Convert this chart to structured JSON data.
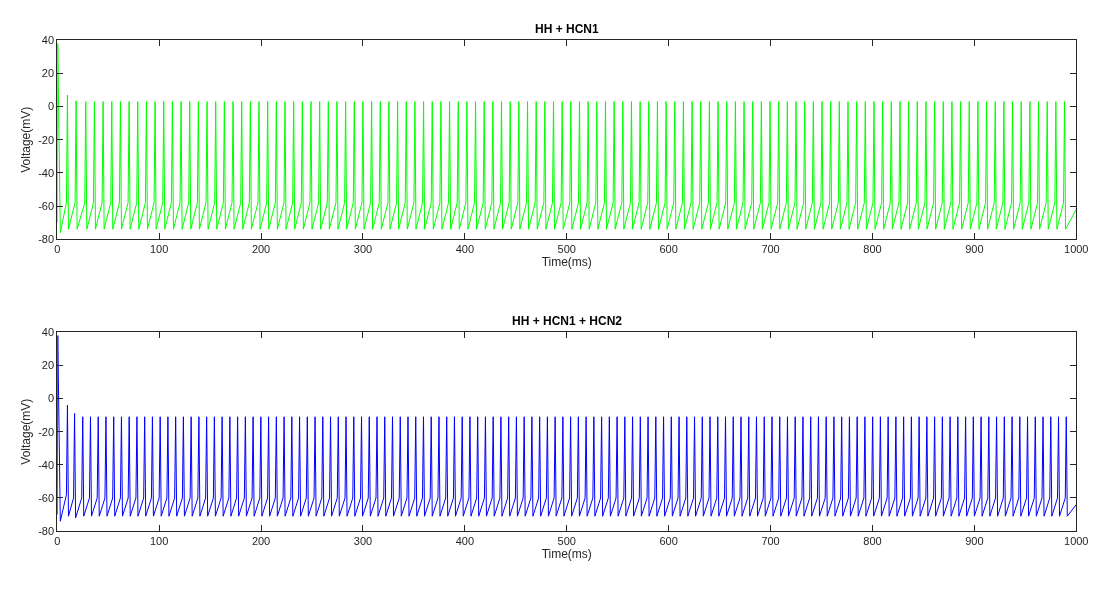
{
  "chart_data": [
    {
      "type": "line",
      "title": "HH + HCN1",
      "xlabel": "Time(ms)",
      "ylabel": "Voltage(mV)",
      "xlim": [
        0,
        1000
      ],
      "xticks": [
        0,
        100,
        200,
        300,
        400,
        500,
        600,
        700,
        800,
        900,
        1000
      ],
      "ylim": [
        -80,
        40
      ],
      "yticks": [
        -80,
        -60,
        -40,
        -20,
        0,
        20,
        40
      ],
      "series": [
        {
          "color": "#00ff00",
          "x": [
            0,
            0.5,
            3,
            9,
            10,
            11,
            17.5,
            18.5,
            19.5,
            27,
            28,
            29,
            35.5,
            36.5,
            37.5,
            44,
            45,
            46,
            52.5,
            53.5,
            54.5,
            61,
            62,
            63,
            69.5,
            70.5,
            71.5,
            78,
            79,
            80,
            86.5,
            87.5,
            88.5,
            95,
            96,
            97,
            103.5,
            104.5,
            105.5,
            112,
            113,
            114,
            120.5,
            121.5,
            122.5,
            129,
            130,
            131,
            137.5,
            138.5,
            139.5,
            146,
            147,
            148,
            154.5,
            155.5,
            156.5,
            163,
            164,
            165,
            171.5,
            172.5,
            173.5,
            180,
            181,
            182,
            188.5,
            189.5,
            190.5,
            197,
            198,
            199,
            205.5,
            206.5,
            207.5,
            214,
            215,
            216,
            222.5,
            223.5,
            224.5,
            231,
            232,
            233,
            239.5,
            240.5,
            241.5,
            248,
            249,
            250,
            256.5,
            257.5,
            258.5,
            265,
            266,
            267,
            273.5,
            274.5,
            275.5,
            282,
            283,
            284,
            290.5,
            291.5,
            292.5,
            299,
            300,
            301,
            307.5,
            308.5,
            309.5,
            316,
            317,
            318,
            324.5,
            325.5,
            326.5,
            333,
            334,
            335,
            341.5,
            342.5,
            343.5,
            350,
            351,
            352,
            358.5,
            359.5,
            360.5,
            367,
            368,
            369,
            375.5,
            376.5,
            377.5,
            384,
            385,
            386,
            392.5,
            393.5,
            394.5,
            401,
            402,
            403,
            409.5,
            410.5,
            411.5,
            418,
            419,
            420,
            426.5,
            427.5,
            428.5,
            435,
            436,
            437,
            443.5,
            444.5,
            445.5,
            452,
            453,
            454,
            460.5,
            461.5,
            462.5,
            469,
            470,
            471,
            477.5,
            478.5,
            479.5,
            486,
            487,
            488,
            494.5,
            495.5,
            496.5,
            503,
            504,
            505,
            511.5,
            512.5,
            513.5,
            520,
            521,
            522,
            528.5,
            529.5,
            530.5,
            537,
            538,
            539,
            545.5,
            546.5,
            547.5,
            554,
            555,
            556,
            562.5,
            563.5,
            564.5,
            571,
            572,
            573,
            579.5,
            580.5,
            581.5,
            588,
            589,
            590,
            596.5,
            597.5,
            598.5,
            605,
            606,
            607,
            613.5,
            614.5,
            615.5,
            622,
            623,
            624,
            630.5,
            631.5,
            632.5,
            639,
            640,
            641,
            647.5,
            648.5,
            649.5,
            656,
            657,
            658,
            664.5,
            665.5,
            666.5,
            673,
            674,
            675,
            681.5,
            682.5,
            683.5,
            690,
            691,
            692,
            698.5,
            699.5,
            700.5,
            707,
            708,
            709,
            715.5,
            716.5,
            717.5,
            724,
            725,
            726,
            732.5,
            733.5,
            734.5,
            741,
            742,
            743,
            749.5,
            750.5,
            751.5,
            758,
            759,
            760,
            766.5,
            767.5,
            768.5,
            775,
            776,
            777,
            783.5,
            784.5,
            785.5,
            792,
            793,
            794,
            800.5,
            801.5,
            802.5,
            809,
            810,
            811,
            817.5,
            818.5,
            819.5,
            826,
            827,
            828,
            834.5,
            835.5,
            836.5,
            843,
            844,
            845,
            851.5,
            852.5,
            853.5,
            860,
            861,
            862,
            868.5,
            869.5,
            870.5,
            877,
            878,
            879,
            885.5,
            886.5,
            887.5,
            894,
            895,
            896,
            902.5,
            903.5,
            904.5,
            911,
            912,
            913,
            919.5,
            920.5,
            921.5,
            928,
            929,
            930,
            936.5,
            937.5,
            938.5,
            945,
            946,
            947,
            953.5,
            954.5,
            955.5,
            962,
            963,
            964,
            970.5,
            971.5,
            972.5,
            979,
            980,
            981,
            987.5,
            988.5,
            989.5,
            1000
          ],
          "values": [
            -70,
            38,
            -76,
            -58,
            7,
            -74,
            -58,
            3.5,
            -74,
            -58,
            3,
            -74,
            -58,
            3,
            -74,
            -58,
            3,
            -74,
            -58,
            3,
            -74,
            -58,
            3,
            -74,
            -58,
            3,
            -74,
            -58,
            3,
            -74,
            -58,
            3,
            -74,
            -58,
            3,
            -74,
            -58,
            3,
            -74,
            -58,
            3,
            -74,
            -58,
            3,
            -74,
            -58,
            3,
            -74,
            -58,
            3,
            -74,
            -58,
            3,
            -74,
            -58,
            3,
            -74,
            -58,
            3,
            -74,
            -58,
            3,
            -74,
            -58,
            3,
            -74,
            -58,
            3,
            -74,
            -58,
            3,
            -74,
            -58,
            3,
            -74,
            -58,
            3,
            -74,
            -58,
            3,
            -74,
            -58,
            3,
            -74,
            -58,
            3,
            -74,
            -58,
            3,
            -74,
            -58,
            3,
            -74,
            -58,
            3,
            -74,
            -58,
            3,
            -74,
            -58,
            3,
            -74,
            -58,
            3,
            -74,
            -58,
            3,
            -74,
            -58,
            3,
            -74,
            -58,
            3,
            -74,
            -58,
            3,
            -74,
            -58,
            3,
            -74,
            -58,
            3,
            -74,
            -58,
            3,
            -74,
            -58,
            3,
            -74,
            -58,
            3,
            -74,
            -58,
            3,
            -74,
            -58,
            3,
            -74,
            -58,
            3,
            -74,
            -58,
            3,
            -74,
            -58,
            3,
            -74,
            -58,
            3,
            -74,
            -58,
            3,
            -74,
            -58,
            3,
            -74,
            -58,
            3,
            -74,
            -58,
            3,
            -74,
            -58,
            3,
            -74,
            -58,
            3,
            -74,
            -58,
            3,
            -74,
            -58,
            3,
            -74,
            -58,
            3,
            -74,
            -58,
            3,
            -74,
            -58,
            3,
            -74,
            -58,
            3,
            -74,
            -58,
            3,
            -74,
            -58,
            3,
            -74,
            -58,
            3,
            -74,
            -58,
            3,
            -74,
            -58,
            3,
            -74,
            -58,
            3,
            -74,
            -58,
            3,
            -74,
            -58,
            3,
            -74,
            -58,
            3,
            -74,
            -58,
            3,
            -74,
            -58,
            3,
            -74,
            -58,
            3,
            -74,
            -58,
            3,
            -74,
            -58,
            3,
            -74,
            -58,
            3,
            -74,
            -58,
            3,
            -74,
            -58,
            3,
            -74,
            -58,
            3,
            -74,
            -58,
            3,
            -74,
            -58,
            3,
            -74,
            -58,
            3,
            -74,
            -58,
            3,
            -74,
            -58,
            3,
            -74,
            -58,
            3,
            -74,
            -58,
            3,
            -74,
            -58,
            3,
            -74,
            -58,
            3,
            -74,
            -58,
            3,
            -74,
            -58,
            3,
            -74,
            -58,
            3,
            -74,
            -58,
            3,
            -74,
            -58,
            3,
            -74,
            -58,
            3,
            -74,
            -58,
            3,
            -74,
            -58,
            3,
            -74,
            -58,
            3,
            -74,
            -58,
            3,
            -74,
            -58,
            3,
            -74,
            -58,
            3,
            -74,
            -58,
            3,
            -74,
            -58,
            3,
            -74,
            -58,
            3,
            -74,
            -58,
            3,
            -74,
            -58,
            3,
            -74,
            -58,
            3,
            -74,
            -58,
            3,
            -74,
            -58,
            3,
            -74,
            -58,
            3,
            -74,
            -58,
            3,
            -74,
            -58,
            3,
            -74,
            -58,
            3,
            -74,
            -58,
            3,
            -74,
            -58,
            3,
            -74,
            -58,
            3,
            -74,
            -58,
            3,
            -74,
            -62
          ]
        }
      ]
    },
    {
      "type": "line",
      "title": "HH + HCN1 + HCN2",
      "xlabel": "Time(ms)",
      "ylabel": "Voltage(mV)",
      "xlim": [
        0,
        1000
      ],
      "xticks": [
        0,
        100,
        200,
        300,
        400,
        500,
        600,
        700,
        800,
        900,
        1000
      ],
      "ylim": [
        -80,
        40
      ],
      "yticks": [
        -80,
        -60,
        -40,
        -20,
        0,
        20,
        40
      ],
      "series": [
        {
          "color": "#0000ff",
          "x": [
            0,
            0.5,
            3,
            9,
            10,
            11,
            16,
            17,
            18,
            24,
            25,
            26,
            31.6,
            32.6,
            33.6,
            39.2,
            40.2,
            41.2,
            46.8,
            47.8,
            48.8,
            54.4,
            55.4,
            56.4,
            62,
            63,
            64,
            69.6,
            70.6,
            71.6,
            77.2,
            78.2,
            79.2,
            84.8,
            85.8,
            86.8,
            92.4,
            93.4,
            94.4,
            100,
            101,
            102,
            107.6,
            108.6,
            109.6,
            115.2,
            116.2,
            117.2,
            122.8,
            123.8,
            124.8,
            130.4,
            131.4,
            132.4,
            138,
            139,
            140,
            145.6,
            146.6,
            147.6,
            153.2,
            154.2,
            155.2,
            160.8,
            161.8,
            162.8,
            168.4,
            169.4,
            170.4,
            176,
            177,
            178,
            183.6,
            184.6,
            185.6,
            191.2,
            192.2,
            193.2,
            198.8,
            199.8,
            200.8,
            206.4,
            207.4,
            208.4,
            214,
            215,
            216,
            221.6,
            222.6,
            223.6,
            229.2,
            230.2,
            231.2,
            236.8,
            237.8,
            238.8,
            244.4,
            245.4,
            246.4,
            252,
            253,
            254,
            259.6,
            260.6,
            261.6,
            267.2,
            268.2,
            269.2,
            274.8,
            275.8,
            276.8,
            282.4,
            283.4,
            284.4,
            290,
            291,
            292,
            297.6,
            298.6,
            299.6,
            305.2,
            306.2,
            307.2,
            312.8,
            313.8,
            314.8,
            320.4,
            321.4,
            322.4,
            328,
            329,
            330,
            335.6,
            336.6,
            337.6,
            343.2,
            344.2,
            345.2,
            350.8,
            351.8,
            352.8,
            358.4,
            359.4,
            360.4,
            366,
            367,
            368,
            373.6,
            374.6,
            375.6,
            381.2,
            382.2,
            383.2,
            388.8,
            389.8,
            390.8,
            396.4,
            397.4,
            398.4,
            404,
            405,
            406,
            411.6,
            412.6,
            413.6,
            419.2,
            420.2,
            421.2,
            426.8,
            427.8,
            428.8,
            434.4,
            435.4,
            436.4,
            442,
            443,
            444,
            449.6,
            450.6,
            451.6,
            457.2,
            458.2,
            459.2,
            464.8,
            465.8,
            466.8,
            472.4,
            473.4,
            474.4,
            480,
            481,
            482,
            487.6,
            488.6,
            489.6,
            495.2,
            496.2,
            497.2,
            502.8,
            503.8,
            504.8,
            510.4,
            511.4,
            512.4,
            518,
            519,
            520,
            525.6,
            526.6,
            527.6,
            533.2,
            534.2,
            535.2,
            540.8,
            541.8,
            542.8,
            548.4,
            549.4,
            550.4,
            556,
            557,
            558,
            563.6,
            564.6,
            565.6,
            571.2,
            572.2,
            573.2,
            578.8,
            579.8,
            580.8,
            586.4,
            587.4,
            588.4,
            594,
            595,
            596,
            601.6,
            602.6,
            603.6,
            609.2,
            610.2,
            611.2,
            616.8,
            617.8,
            618.8,
            624.4,
            625.4,
            626.4,
            632,
            633,
            634,
            639.6,
            640.6,
            641.6,
            647.2,
            648.2,
            649.2,
            654.8,
            655.8,
            656.8,
            662.4,
            663.4,
            664.4,
            670,
            671,
            672,
            677.6,
            678.6,
            679.6,
            685.2,
            686.2,
            687.2,
            692.8,
            693.8,
            694.8,
            700.4,
            701.4,
            702.4,
            708,
            709,
            710,
            715.6,
            716.6,
            717.6,
            723.2,
            724.2,
            725.2,
            730.8,
            731.8,
            732.8,
            738.4,
            739.4,
            740.4,
            746,
            747,
            748,
            753.6,
            754.6,
            755.6,
            761.2,
            762.2,
            763.2,
            768.8,
            769.8,
            770.8,
            776.4,
            777.4,
            778.4,
            784,
            785,
            786,
            791.6,
            792.6,
            793.6,
            799.2,
            800.2,
            801.2,
            806.8,
            807.8,
            808.8,
            814.4,
            815.4,
            816.4,
            822,
            823,
            824,
            829.6,
            830.6,
            831.6,
            837.2,
            838.2,
            839.2,
            844.8,
            845.8,
            846.8,
            852.4,
            853.4,
            854.4,
            860,
            861,
            862,
            867.6,
            868.6,
            869.6,
            875.2,
            876.2,
            877.2,
            882.8,
            883.8,
            884.8,
            890.4,
            891.4,
            892.4,
            898,
            899,
            900,
            905.6,
            906.6,
            907.6,
            913.2,
            914.2,
            915.2,
            920.8,
            921.8,
            922.8,
            928.4,
            929.4,
            930.4,
            936,
            937,
            938,
            943.6,
            944.6,
            945.6,
            951.2,
            952.2,
            953.2,
            958.8,
            959.8,
            960.8,
            966.4,
            967.4,
            968.4,
            974,
            975,
            976,
            981.6,
            982.6,
            983.6,
            989.2,
            990.2,
            991.2,
            1000
          ],
          "values": [
            -70,
            38,
            -74,
            -58,
            -4,
            -71,
            -60,
            -9,
            -72,
            -60,
            -11,
            -71,
            -60,
            -11,
            -71,
            -60,
            -11,
            -71,
            -60,
            -11,
            -71,
            -60,
            -11,
            -71,
            -60,
            -11,
            -71,
            -60,
            -11,
            -71,
            -60,
            -11,
            -71,
            -60,
            -11,
            -71,
            -60,
            -11,
            -71,
            -60,
            -11,
            -71,
            -60,
            -11,
            -71,
            -60,
            -11,
            -71,
            -60,
            -11,
            -71,
            -60,
            -11,
            -71,
            -60,
            -11,
            -71,
            -60,
            -11,
            -71,
            -60,
            -11,
            -71,
            -60,
            -11,
            -71,
            -60,
            -11,
            -71,
            -60,
            -11,
            -71,
            -60,
            -11,
            -71,
            -60,
            -11,
            -71,
            -60,
            -11,
            -71,
            -60,
            -11,
            -71,
            -60,
            -11,
            -71,
            -60,
            -11,
            -71,
            -60,
            -11,
            -71,
            -60,
            -11,
            -71,
            -60,
            -11,
            -71,
            -60,
            -11,
            -71,
            -60,
            -11,
            -71,
            -60,
            -11,
            -71,
            -60,
            -11,
            -71,
            -60,
            -11,
            -71,
            -60,
            -11,
            -71,
            -60,
            -11,
            -71,
            -60,
            -11,
            -71,
            -60,
            -11,
            -71,
            -60,
            -11,
            -71,
            -60,
            -11,
            -71,
            -60,
            -11,
            -71,
            -60,
            -11,
            -71,
            -60,
            -11,
            -71,
            -60,
            -11,
            -71,
            -60,
            -11,
            -71,
            -60,
            -11,
            -71,
            -60,
            -11,
            -71,
            -60,
            -11,
            -71,
            -60,
            -11,
            -71,
            -60,
            -11,
            -71,
            -60,
            -11,
            -71,
            -60,
            -11,
            -71,
            -60,
            -11,
            -71,
            -60,
            -11,
            -71,
            -60,
            -11,
            -71,
            -60,
            -11,
            -71,
            -60,
            -11,
            -71,
            -60,
            -11,
            -71,
            -60,
            -11,
            -71,
            -60,
            -11,
            -71,
            -60,
            -11,
            -71,
            -60,
            -11,
            -71,
            -60,
            -11,
            -71,
            -60,
            -11,
            -71,
            -60,
            -11,
            -71,
            -60,
            -11,
            -71,
            -60,
            -11,
            -71,
            -60,
            -11,
            -71,
            -60,
            -11,
            -71,
            -60,
            -11,
            -71,
            -60,
            -11,
            -71,
            -60,
            -11,
            -71,
            -60,
            -11,
            -71,
            -60,
            -11,
            -71,
            -60,
            -11,
            -71,
            -60,
            -11,
            -71,
            -60,
            -11,
            -71,
            -60,
            -11,
            -71,
            -60,
            -11,
            -71,
            -60,
            -11,
            -71,
            -60,
            -11,
            -71,
            -60,
            -11,
            -71,
            -60,
            -11,
            -71,
            -60,
            -11,
            -71,
            -60,
            -11,
            -71,
            -60,
            -11,
            -71,
            -60,
            -11,
            -71,
            -60,
            -11,
            -71,
            -60,
            -11,
            -71,
            -60,
            -11,
            -71,
            -60,
            -11,
            -71,
            -60,
            -11,
            -71,
            -60,
            -11,
            -71,
            -60,
            -11,
            -71,
            -60,
            -11,
            -71,
            -60,
            -11,
            -71,
            -60,
            -11,
            -71,
            -60,
            -11,
            -71,
            -60,
            -11,
            -71,
            -60,
            -11,
            -71,
            -60,
            -11,
            -71,
            -60,
            -11,
            -71,
            -60,
            -11,
            -71,
            -60,
            -11,
            -71,
            -60,
            -11,
            -71,
            -60,
            -11,
            -71,
            -60,
            -11,
            -71,
            -60,
            -11,
            -71,
            -60,
            -11,
            -71,
            -60,
            -11,
            -71,
            -60,
            -11,
            -71,
            -60,
            -11,
            -71,
            -60,
            -11,
            -71,
            -60,
            -11,
            -71,
            -60,
            -11,
            -71,
            -60,
            -11,
            -71,
            -60,
            -11,
            -71,
            -60,
            -11,
            -71,
            -60,
            -11,
            -71,
            -60,
            -11,
            -71,
            -60,
            -11,
            -71,
            -60,
            -11,
            -71,
            -60,
            -11,
            -71,
            -60,
            -11,
            -71,
            -60,
            -11,
            -71,
            -60,
            -11,
            -71,
            -60,
            -11,
            -71,
            -64
          ]
        }
      ]
    }
  ]
}
